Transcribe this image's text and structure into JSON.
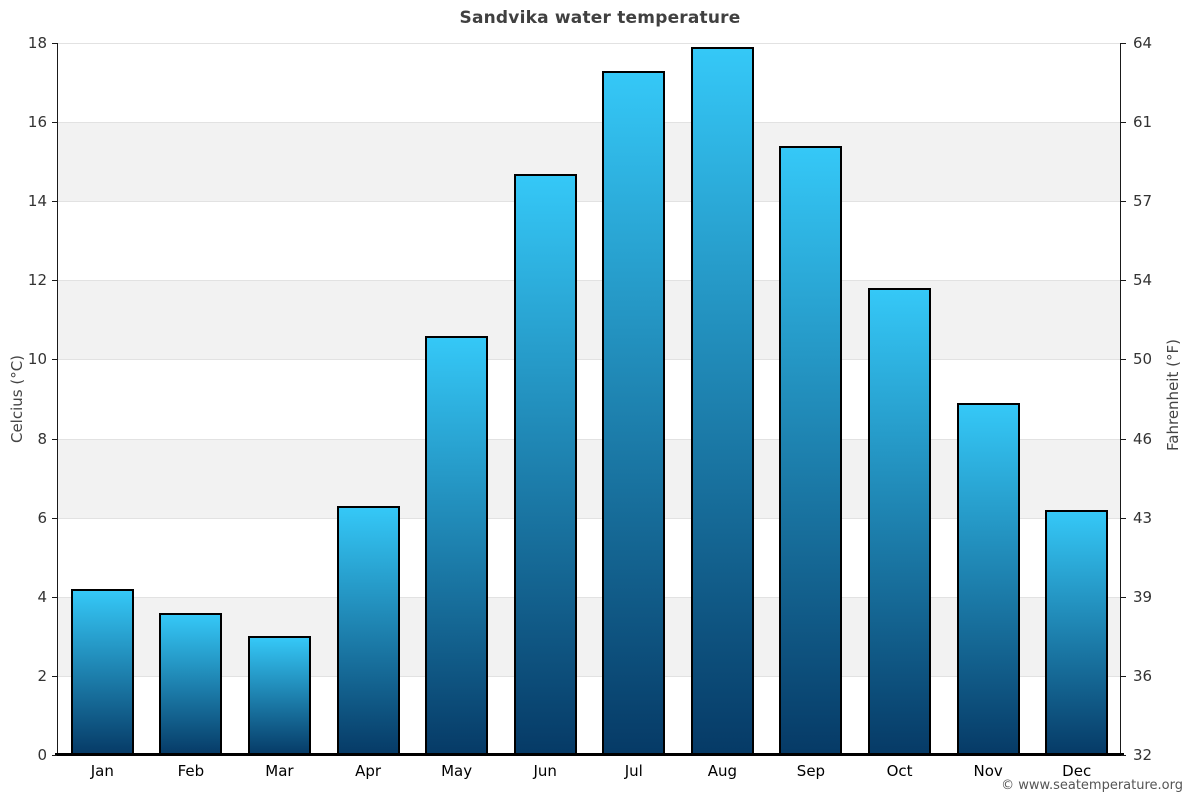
{
  "page": {
    "footer": "© www.seatemperature.org"
  },
  "chart_data": {
    "type": "bar",
    "title": "Sandvika water temperature",
    "categories": [
      "Jan",
      "Feb",
      "Mar",
      "Apr",
      "May",
      "Jun",
      "Jul",
      "Aug",
      "Sep",
      "Oct",
      "Nov",
      "Dec"
    ],
    "values": [
      4.2,
      3.6,
      3.0,
      6.3,
      10.6,
      14.7,
      17.3,
      17.9,
      15.4,
      11.8,
      8.9,
      6.2
    ],
    "ylabel_left": "Celcius (°C)",
    "ylabel_right": "Fahrenheit (°F)",
    "yticks_left": [
      0,
      2,
      4,
      6,
      8,
      10,
      12,
      14,
      16,
      18
    ],
    "yticks_right": [
      32,
      36,
      39,
      43,
      46,
      50,
      54,
      57,
      61,
      64
    ],
    "ylim": [
      0,
      18
    ],
    "grid": "alternating-bands",
    "legend": "none",
    "colors": {
      "bar_gradient_top": "#35c8f7",
      "bar_gradient_bottom": "#063a66",
      "bar_border": "#000000",
      "band_gray": "#f2f2f2",
      "gridline": "#e2e2e2",
      "axis": "#1a1a1a",
      "title_text": "#404040",
      "tick_text": "#333333",
      "footer_text": "#555555"
    }
  }
}
